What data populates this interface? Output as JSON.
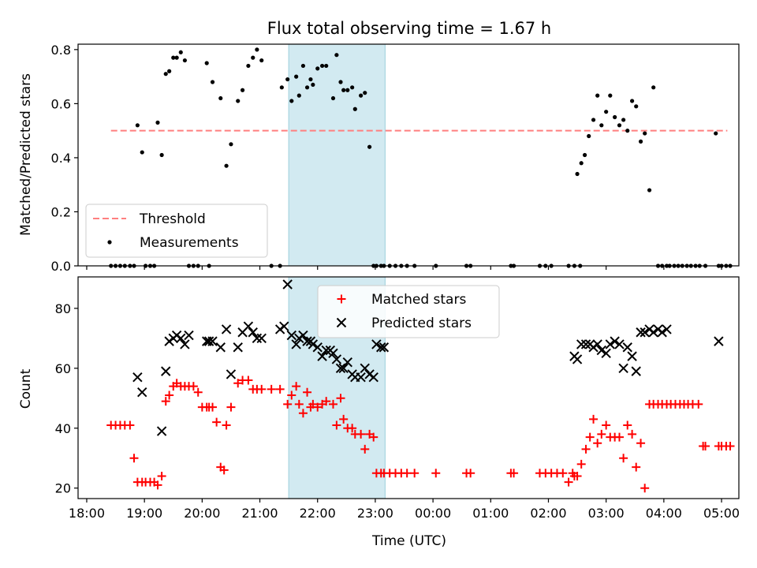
{
  "title": "Flux total observing time = 1.67 h",
  "chart_data": [
    {
      "type": "scatter",
      "panel": "top",
      "title": "Flux total observing time = 1.67 h",
      "ylabel": "Matched/Predicted stars",
      "ylim": [
        0,
        0.82
      ],
      "yticks": [
        0.0,
        0.2,
        0.4,
        0.6,
        0.8
      ],
      "ytick_labels": [
        "0.0",
        "0.2",
        "0.4",
        "0.6",
        "0.8"
      ],
      "xlim": [
        -0.15,
        11.3
      ],
      "xtick_labels": [
        "18:00",
        "19:00",
        "20:00",
        "21:00",
        "22:00",
        "23:00",
        "00:00",
        "01:00",
        "02:00",
        "03:00",
        "04:00",
        "05:00"
      ],
      "x_unit": "hours since 18:00 UTC",
      "shaded_interval": [
        3.5,
        5.17
      ],
      "shaded_color": "#add8e6",
      "legend_position": "lower left",
      "series": [
        {
          "name": "Threshold",
          "style": "dashed-line",
          "color": "#ff7f7f",
          "x": [
            0.42,
            11.1
          ],
          "y": [
            0.5,
            0.5
          ]
        },
        {
          "name": "Measurements",
          "style": "dot",
          "color": "#000000",
          "x": [
            0.42,
            0.5,
            0.58,
            0.66,
            0.75,
            0.82,
            0.88,
            0.96,
            1.02,
            1.1,
            1.17,
            1.23,
            1.3,
            1.37,
            1.43,
            1.5,
            1.56,
            1.63,
            1.7,
            1.77,
            1.85,
            1.93,
            2.08,
            2.12,
            2.18,
            2.32,
            2.42,
            2.5,
            2.62,
            2.7,
            2.8,
            2.88,
            2.95,
            3.03,
            3.2,
            3.35,
            3.38,
            3.48,
            3.55,
            3.63,
            3.68,
            3.75,
            3.82,
            3.88,
            3.92,
            4.0,
            4.08,
            4.15,
            4.27,
            4.33,
            4.4,
            4.45,
            4.52,
            4.6,
            4.65,
            4.75,
            4.82,
            4.9,
            4.97,
            5.02,
            5.1,
            5.15,
            5.25,
            5.35,
            5.45,
            5.55,
            5.68,
            6.05,
            6.58,
            6.65,
            7.35,
            7.4,
            7.85,
            7.95,
            8.05,
            8.35,
            8.45,
            8.5,
            8.57,
            8.55,
            8.63,
            8.7,
            8.78,
            8.85,
            8.92,
            9.0,
            9.07,
            9.15,
            9.23,
            9.3,
            9.37,
            9.45,
            9.52,
            9.6,
            9.67,
            9.75,
            9.82,
            9.9,
            9.97,
            10.05,
            10.1,
            10.18,
            10.25,
            10.32,
            10.4,
            10.47,
            10.55,
            10.62,
            10.72,
            10.9,
            10.95,
            11.0,
            11.08,
            11.15
          ],
          "y": [
            0,
            0,
            0,
            0,
            0,
            0,
            0.52,
            0.42,
            0,
            0,
            0,
            0.53,
            0.41,
            0.71,
            0.72,
            0.77,
            0.77,
            0.79,
            0.76,
            0,
            0,
            0,
            0.75,
            0,
            0.68,
            0.62,
            0.37,
            0.45,
            0.61,
            0.65,
            0.74,
            0.77,
            0.8,
            0.76,
            0,
            0,
            0.66,
            0.69,
            0.61,
            0.7,
            0.63,
            0.74,
            0.66,
            0.69,
            0.67,
            0.73,
            0.74,
            0.74,
            0.62,
            0.78,
            0.68,
            0.65,
            0.65,
            0.66,
            0.58,
            0.63,
            0.64,
            0.44,
            0,
            0,
            0,
            0,
            0,
            0,
            0,
            0,
            0,
            0,
            0,
            0,
            0,
            0,
            0,
            0,
            0,
            0,
            0,
            0.34,
            0.38,
            0,
            0.41,
            0.48,
            0.54,
            0.63,
            0.52,
            0.57,
            0.63,
            0.55,
            0.52,
            0.54,
            0.5,
            0.61,
            0.59,
            0.46,
            0.49,
            0.28,
            0.66,
            0,
            0,
            0,
            0,
            0,
            0,
            0,
            0,
            0,
            0,
            0,
            0,
            0.49,
            0,
            0,
            0,
            0
          ]
        }
      ]
    },
    {
      "type": "scatter",
      "panel": "bottom",
      "xlabel": "Time (UTC)",
      "ylabel": "Count",
      "ylim": [
        16.5,
        90.5
      ],
      "yticks": [
        20,
        40,
        60,
        80
      ],
      "ytick_labels": [
        "20",
        "40",
        "60",
        "80"
      ],
      "xlim": [
        -0.15,
        11.3
      ],
      "xtick_labels": [
        "18:00",
        "19:00",
        "20:00",
        "21:00",
        "22:00",
        "23:00",
        "00:00",
        "01:00",
        "02:00",
        "03:00",
        "04:00",
        "05:00"
      ],
      "x_unit": "hours since 18:00 UTC",
      "shaded_interval": [
        3.5,
        5.17
      ],
      "shaded_color": "#add8e6",
      "legend_position": "upper center",
      "series": [
        {
          "name": "Matched stars",
          "marker": "+",
          "color": "#ff0000",
          "x": [
            0.42,
            0.5,
            0.58,
            0.66,
            0.75,
            0.82,
            0.88,
            0.96,
            1.02,
            1.1,
            1.17,
            1.23,
            1.3,
            1.37,
            1.43,
            1.5,
            1.56,
            1.63,
            1.7,
            1.77,
            1.85,
            1.93,
            2.0,
            2.08,
            2.12,
            2.18,
            2.25,
            2.32,
            2.38,
            2.42,
            2.5,
            2.62,
            2.7,
            2.8,
            2.88,
            2.95,
            3.03,
            3.2,
            3.35,
            3.48,
            3.55,
            3.63,
            3.68,
            3.75,
            3.82,
            3.88,
            3.92,
            4.0,
            4.08,
            4.15,
            4.27,
            4.33,
            4.4,
            4.45,
            4.52,
            4.6,
            4.65,
            4.75,
            4.82,
            4.9,
            4.97,
            5.02,
            5.1,
            5.15,
            5.25,
            5.35,
            5.45,
            5.55,
            5.68,
            6.05,
            6.58,
            6.65,
            7.35,
            7.4,
            7.85,
            7.95,
            8.05,
            8.15,
            8.25,
            8.35,
            8.42,
            8.45,
            8.5,
            8.57,
            8.65,
            8.72,
            8.78,
            8.85,
            8.92,
            9.0,
            9.07,
            9.15,
            9.23,
            9.3,
            9.37,
            9.45,
            9.52,
            9.6,
            9.67,
            9.75,
            9.82,
            9.9,
            9.97,
            10.05,
            10.12,
            10.2,
            10.28,
            10.35,
            10.42,
            10.5,
            10.6,
            10.68,
            10.72,
            10.95,
            11.0,
            11.08,
            11.15
          ],
          "y": [
            41,
            41,
            41,
            41,
            41,
            30,
            22,
            22,
            22,
            22,
            22,
            21,
            24,
            49,
            51,
            54,
            55,
            54,
            54,
            54,
            54,
            52,
            47,
            47,
            47,
            47,
            42,
            27,
            26,
            41,
            47,
            55,
            56,
            56,
            53,
            53,
            53,
            53,
            53,
            48,
            51,
            54,
            48,
            45,
            52,
            47,
            48,
            47,
            48,
            49,
            48,
            41,
            50,
            43,
            40,
            40,
            38,
            38,
            33,
            38,
            37,
            25,
            25,
            25,
            25,
            25,
            25,
            25,
            25,
            25,
            25,
            25,
            25,
            25,
            25,
            25,
            25,
            25,
            25,
            22,
            25,
            24,
            24,
            28,
            33,
            37,
            43,
            35,
            38,
            41,
            37,
            37,
            37,
            30,
            41,
            38,
            27,
            35,
            20,
            48,
            48,
            48,
            48,
            48,
            48,
            48,
            48,
            48,
            48,
            48,
            48,
            34,
            34,
            34,
            34,
            34,
            34
          ]
        },
        {
          "name": "Predicted stars",
          "marker": "x",
          "color": "#000000",
          "x": [
            0.88,
            0.96,
            1.3,
            1.37,
            1.43,
            1.5,
            1.56,
            1.63,
            1.7,
            1.77,
            2.08,
            2.12,
            2.18,
            2.32,
            2.42,
            2.5,
            2.62,
            2.7,
            2.8,
            2.88,
            2.95,
            3.03,
            3.35,
            3.42,
            3.48,
            3.55,
            3.63,
            3.68,
            3.75,
            3.82,
            3.88,
            3.92,
            4.0,
            4.08,
            4.15,
            4.22,
            4.27,
            4.33,
            4.4,
            4.45,
            4.52,
            4.6,
            4.65,
            4.75,
            4.82,
            4.9,
            4.97,
            5.02,
            5.1,
            5.15,
            8.45,
            8.5,
            8.57,
            8.65,
            8.72,
            8.78,
            8.85,
            8.92,
            9.0,
            9.07,
            9.15,
            9.23,
            9.3,
            9.37,
            9.45,
            9.52,
            9.6,
            9.67,
            9.75,
            9.82,
            9.9,
            9.97,
            10.05,
            10.95
          ],
          "y": [
            57,
            52,
            39,
            59,
            69,
            70,
            71,
            70,
            68,
            71,
            69,
            69,
            69,
            67,
            73,
            58,
            67,
            72,
            74,
            72,
            70,
            70,
            73,
            74,
            88,
            71,
            68,
            70,
            71,
            69,
            69,
            68,
            67,
            64,
            66,
            66,
            65,
            63,
            60,
            60,
            62,
            58,
            57,
            57,
            60,
            58,
            57,
            68,
            67,
            67,
            64,
            63,
            68,
            68,
            68,
            67,
            68,
            66,
            65,
            68,
            69,
            68,
            60,
            67,
            64,
            59,
            72,
            72,
            73,
            72,
            73,
            72,
            73,
            69
          ]
        }
      ]
    }
  ]
}
